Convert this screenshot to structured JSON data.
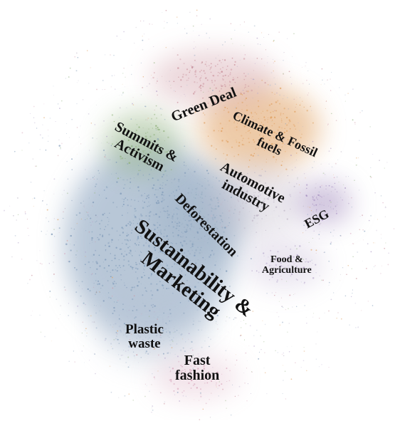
{
  "network_map": {
    "clusters": [
      {
        "key": "green_deal",
        "label": "Green Deal",
        "color": "#c98f9a"
      },
      {
        "key": "climate_fossil",
        "label": "Climate & Fossil\nfuels",
        "color": "#e0a060"
      },
      {
        "key": "summits_activism",
        "label": "Summits &\nActivism",
        "color": "#8fb07a"
      },
      {
        "key": "automotive",
        "label": "Automotive\nindustry",
        "color": "#c0b8c8"
      },
      {
        "key": "deforestation",
        "label": "Deforestation",
        "color": "#9aaec4"
      },
      {
        "key": "esg",
        "label": "ESG",
        "color": "#a58fc0"
      },
      {
        "key": "food_agriculture",
        "label": "Food &\nAgriculture",
        "color": "#b8a9cc"
      },
      {
        "key": "sustainability_marketing",
        "label": "Sustainability &\nMarketing",
        "color": "#7f9ab8"
      },
      {
        "key": "plastic_waste",
        "label": "Plastic\nwaste",
        "color": "#b7c4d6"
      },
      {
        "key": "fast_fashion",
        "label": "Fast\nfashion",
        "color": "#d6a2b8"
      }
    ]
  }
}
